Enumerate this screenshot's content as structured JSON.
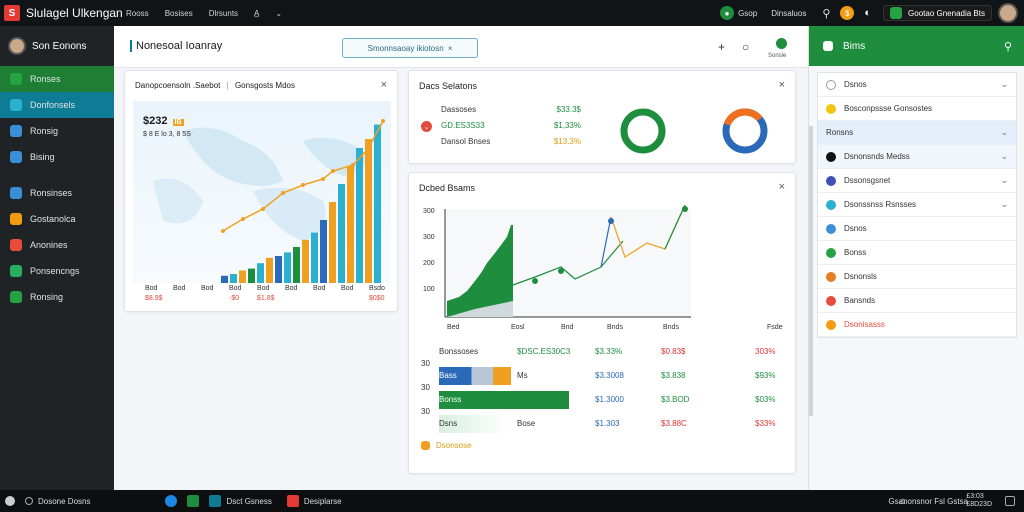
{
  "app": {
    "title": "Slulagel Ulkengan",
    "logo_letter": "S"
  },
  "topmenu": [
    "Rooss",
    "Bosises",
    "Dlrsunts",
    "A̲"
  ],
  "topright": {
    "pill1": "Gsop",
    "link": "Dinsaluos",
    "pill2": "Gootao Gnenadia Bts"
  },
  "sidebar": {
    "profile": "Son Eonons",
    "items": [
      {
        "label": "Ronses",
        "color": "#25a244",
        "active": "g"
      },
      {
        "label": "Donfonsels",
        "color": "#2cb0cf",
        "active": "b"
      },
      {
        "label": "Ronsig",
        "color": "#3a8fd6",
        "active": ""
      },
      {
        "label": "Bising",
        "color": "#3a8fd6",
        "active": ""
      },
      {
        "label": "Ronsinses",
        "color": "#3a8fd6",
        "active": ""
      },
      {
        "label": "Gostanolca",
        "color": "#f39c12",
        "active": ""
      },
      {
        "label": "Anonines",
        "color": "#e74c3c",
        "active": ""
      },
      {
        "label": "Ponsencngs",
        "color": "#27ae60",
        "active": ""
      },
      {
        "label": "Ronsing",
        "color": "#25a244",
        "active": ""
      }
    ]
  },
  "header": {
    "title": "Nonesoal Ioanray",
    "tab": "Smonnsaoay ikiotosn",
    "plus": "+",
    "search": "○",
    "status": "Sonsle"
  },
  "map_card": {
    "title": "Danopcoensoln .Saebot",
    "subtitle": "Gonsgosts Mdos",
    "value": "$232",
    "value_badge": "IB",
    "value_sub": "$ 8 E lo 3, 8 5S",
    "xticks": [
      "Bod",
      "Bod",
      "Bod",
      "Bod",
      "Bod",
      "Bod",
      "Bod",
      "Bod",
      "Bsdo"
    ],
    "xvals": [
      "$8.9$",
      "",
      "",
      "-$0",
      "$1.8$",
      "",
      "",
      "",
      "$0$0"
    ]
  },
  "sales_card": {
    "title": "Dacs Selatons",
    "rows": [
      {
        "label": "Dassoses",
        "val": "$33.3$",
        "color": "#1e8e3e"
      },
      {
        "label": "GD.ES3S33",
        "val": "$1,33%",
        "color": "#1e8e3e"
      },
      {
        "label": "Dansol Bnses",
        "val": "$13.3%",
        "color": "#e09b12"
      }
    ]
  },
  "chart_card": {
    "title": "Dcbed Bsams",
    "yticks": [
      "300",
      "300",
      "200",
      "100"
    ],
    "xticks": [
      "Bed",
      "Eosl",
      "Bnd",
      "Bnds",
      "Bnds",
      "Fsde"
    ],
    "table": [
      {
        "a": "Bonssoses",
        "b": "$DSC.ES30C3",
        "c": "$3.33%",
        "d": "$0.83$",
        "e": "303%",
        "bcol": "#1e8e3e",
        "ccol": "#1e8e3e",
        "dcol": "#d33",
        "ecol": "#d33"
      },
      {
        "a": "Bass",
        "b": "Ms",
        "c": "$3.3008",
        "d": "$3.838",
        "e": "$93%",
        "bcol": "#333",
        "ccol": "#2a6ab8",
        "dcol": "#1e8e3e",
        "ecol": "#1e8e3e"
      },
      {
        "a": "Bonss",
        "b": "",
        "c": "$1.3000",
        "d": "$3.BOD",
        "e": "$03%",
        "bcol": "#333",
        "ccol": "#2a6ab8",
        "dcol": "#1e8e3e",
        "ecol": "#1e8e3e"
      },
      {
        "a": "Dsns",
        "b": "Bose",
        "c": "$1.303",
        "d": "$3.88C",
        "e": "$33%",
        "bcol": "#333",
        "ccol": "#2a6ab8",
        "dcol": "#d33",
        "ecol": "#d33"
      }
    ],
    "row_nums": [
      "30",
      "30",
      "30"
    ],
    "footer": "Dsonsose"
  },
  "rpanel": {
    "title": "Bims",
    "items": [
      {
        "label": "Dsnos",
        "color": "#ffffff",
        "chev": true
      },
      {
        "label": "Bosconpssse Gonsostes",
        "color": "#f1c40f",
        "chev": false
      },
      {
        "label": "Ronsns",
        "color": "",
        "chev": true,
        "hl": true
      },
      {
        "label": "Dsnonsnds Medss",
        "color": "#111111",
        "chev": true,
        "hl2": true
      },
      {
        "label": "Dssonsgsnet",
        "color": "#3f51b5",
        "chev": true
      },
      {
        "label": "Dsonssnss Rsnsses",
        "color": "#2cb0cf",
        "chev": true
      },
      {
        "label": "Dsnos",
        "color": "#3a8fd6",
        "chev": false
      },
      {
        "label": "Bonss",
        "color": "#25a244",
        "chev": false
      },
      {
        "label": "Dsnonsls",
        "color": "#e67e22",
        "chev": false
      },
      {
        "label": "Bansnds",
        "color": "#e74c3c",
        "chev": false
      },
      {
        "label": "Dsonisasss",
        "color": "#f39c12",
        "chev": false,
        "red": true
      }
    ]
  },
  "taskbar": {
    "start": "Dosone Dosns",
    "app1": "Dsct Gsness",
    "app2": "Desiplarse",
    "tray": "Gsanonsnor Fsl Gstsa",
    "clock": "£3:03\n£8D23D"
  },
  "colors": {
    "green": "#1e8e3e",
    "teal": "#0f7c95",
    "orange": "#f0a020",
    "blue": "#2a6ab8",
    "red": "#e24b3b"
  }
}
